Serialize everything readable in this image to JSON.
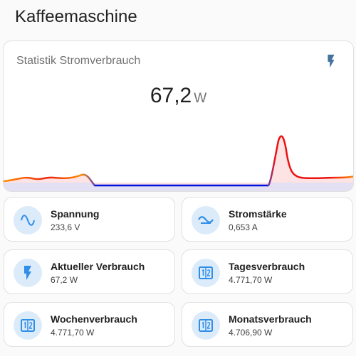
{
  "page": {
    "title": "Kaffeemaschine"
  },
  "graph": {
    "name": "Statistik Stromverbrauch",
    "value": "67,2",
    "unit": "W",
    "icon": "flash-icon",
    "line_colors": {
      "high": "#ee1111",
      "mid": "#ff8c00",
      "low": "#0010dd"
    },
    "fill_color": "#fde0e0",
    "baseline_color": "#dcd8f0"
  },
  "entities": [
    {
      "name": "Spannung",
      "state": "233,6 V",
      "icon": "sine-wave-icon"
    },
    {
      "name": "Stromstärke",
      "state": "0,653 A",
      "icon": "current-ac-icon"
    },
    {
      "name": "Aktueller Verbrauch",
      "state": "67,2 W",
      "icon": "flash-icon"
    },
    {
      "name": "Tagesverbrauch",
      "state": "4.771,70 W",
      "icon": "counter-icon"
    },
    {
      "name": "Wochenverbrauch",
      "state": "4.771,70 W",
      "icon": "counter-icon"
    },
    {
      "name": "Monatsverbrauch",
      "state": "4.706,90 W",
      "icon": "counter-icon"
    }
  ],
  "colors": {
    "icon_blue": "#2f8ee8",
    "icon_bg": "#dcebfa",
    "header_icon": "#44739e"
  }
}
